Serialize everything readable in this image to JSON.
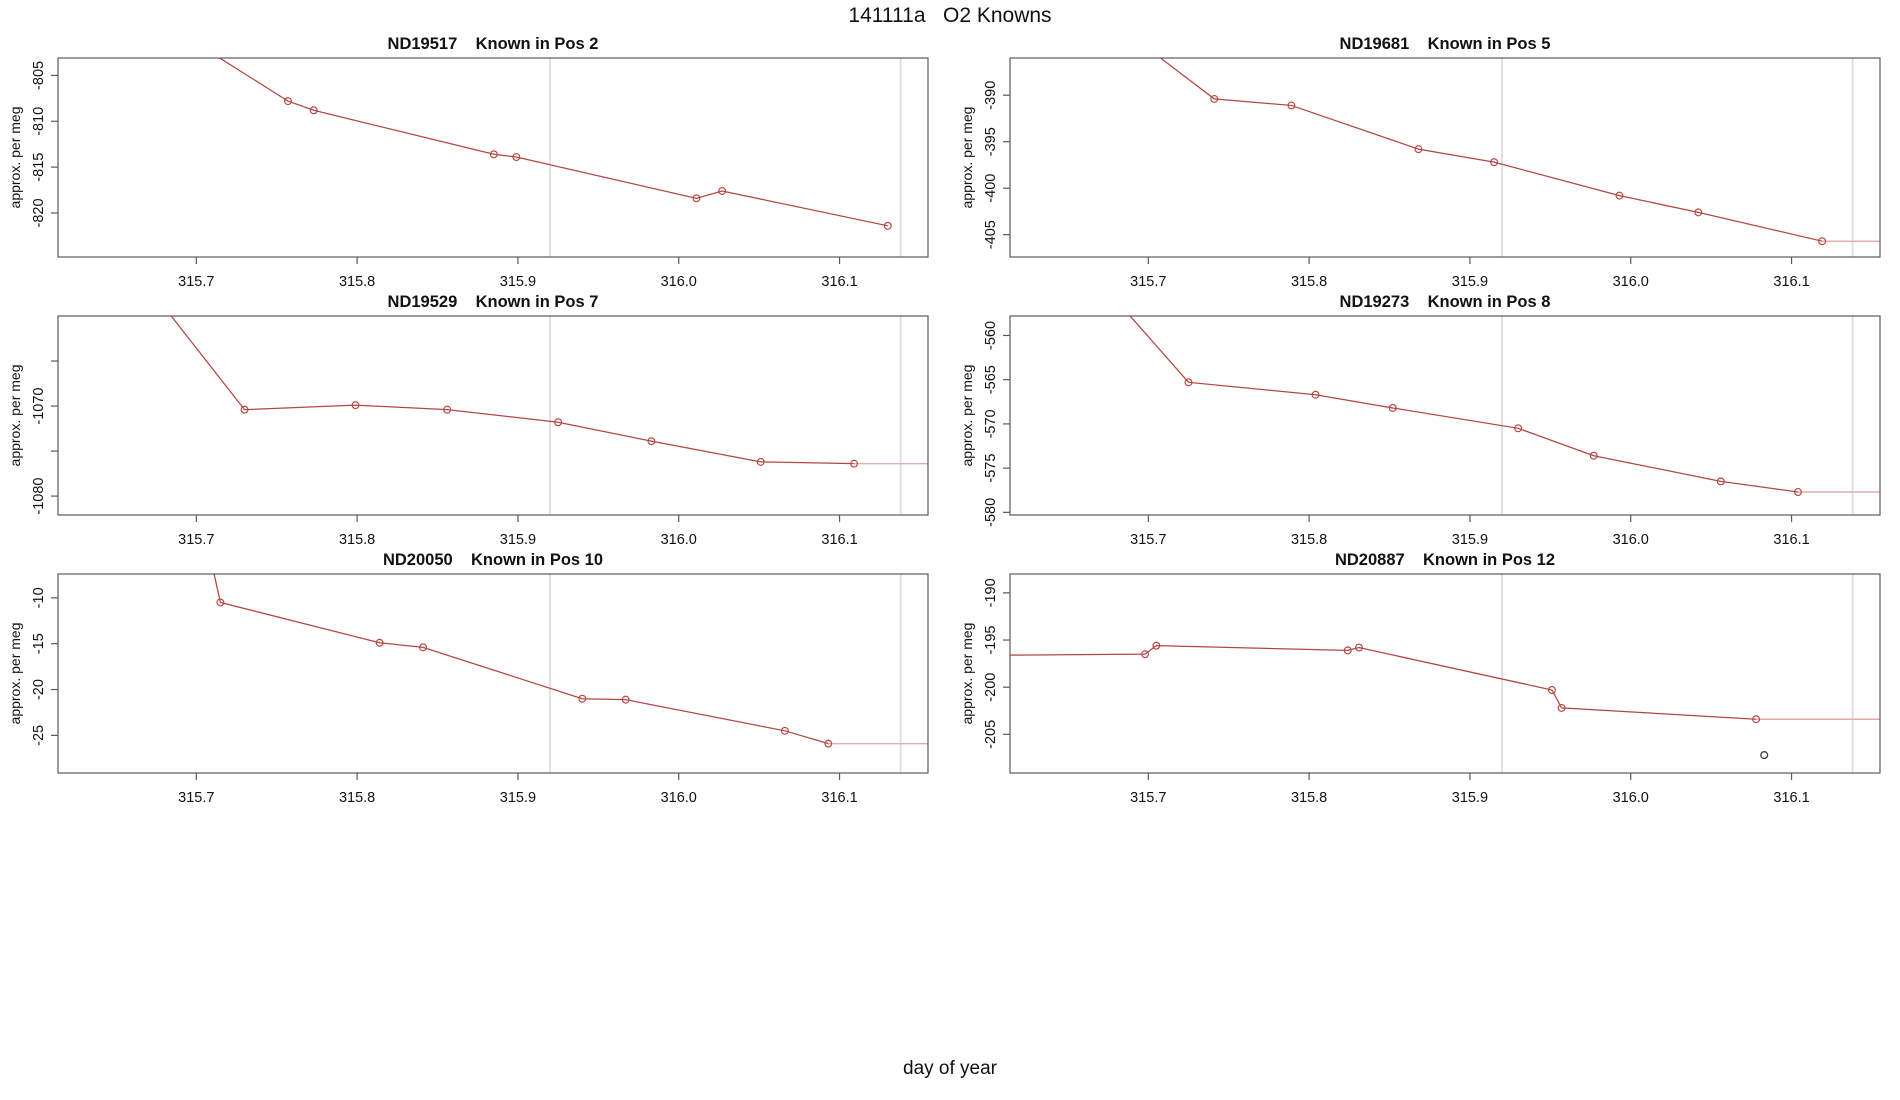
{
  "title": "141111a   O2 Knowns",
  "footer_xlabel": "day of year",
  "y_axis_label": "approx. per meg",
  "axis": {
    "xlim": [
      315.614,
      316.155
    ],
    "xtick_values": [
      315.7,
      315.8,
      315.9,
      316.0,
      316.1
    ],
    "xtick_labels": [
      "315.7",
      "315.8",
      "315.9",
      "316.0",
      "316.1"
    ],
    "guide_lines_x": [
      315.92,
      316.138
    ]
  },
  "colors": {
    "series": "#b44641",
    "series_tail": "#e2aba8",
    "guide": "#dcdcdc",
    "frame": "#5a5a5a",
    "text": "#111111",
    "outlier": "#443733"
  },
  "chart_data": [
    {
      "type": "line",
      "sample_id": "ND19517",
      "position_label": "Known in Pos 2",
      "title": "ND19517    Known in Pos 2",
      "ylim": [
        -824.8,
        -803.1
      ],
      "yticks": [
        -805,
        -810,
        -815,
        -820
      ],
      "ytick_labels": [
        "-805",
        "-810",
        "-815",
        "-820"
      ],
      "entry_point": [
        315.71,
        -802.6
      ],
      "lead_in": null,
      "points": [
        [
          315.757,
          -807.8
        ],
        [
          315.773,
          -808.8
        ],
        [
          315.885,
          -813.6
        ],
        [
          315.899,
          -813.9
        ],
        [
          316.011,
          -818.4
        ],
        [
          316.027,
          -817.6
        ],
        [
          316.13,
          -821.4
        ]
      ],
      "tail_to_x": null,
      "outlier_point": null
    },
    {
      "type": "line",
      "sample_id": "ND19681",
      "position_label": "Known in Pos 5",
      "title": "ND19681    Known in Pos 5",
      "ylim": [
        -407.4,
        -386.0
      ],
      "yticks": [
        -390,
        -395,
        -400,
        -405
      ],
      "ytick_labels": [
        "-390",
        "-395",
        "-400",
        "-405"
      ],
      "entry_point": [
        315.7,
        -385.0
      ],
      "lead_in": null,
      "points": [
        [
          315.741,
          -390.4
        ],
        [
          315.789,
          -391.1
        ],
        [
          315.868,
          -395.8
        ],
        [
          315.915,
          -397.2
        ],
        [
          315.993,
          -400.8
        ],
        [
          316.042,
          -402.6
        ],
        [
          316.119,
          -405.7
        ]
      ],
      "tail_to_x": 316.155,
      "outlier_point": null
    },
    {
      "type": "line",
      "sample_id": "ND19529",
      "position_label": "Known in Pos 7",
      "title": "ND19529    Known in Pos 7",
      "ylim": [
        -1082.1,
        -1060.0
      ],
      "yticks": [
        -1065,
        -1070,
        -1075,
        -1080
      ],
      "ytick_labels": [
        "",
        "-1070",
        "",
        "-1080"
      ],
      "entry_point": [
        315.68,
        -1059.0
      ],
      "lead_in": null,
      "points": [
        [
          315.73,
          -1070.4
        ],
        [
          315.799,
          -1069.9
        ],
        [
          315.856,
          -1070.4
        ],
        [
          315.925,
          -1071.8
        ],
        [
          315.983,
          -1073.9
        ],
        [
          316.051,
          -1076.2
        ],
        [
          316.109,
          -1076.4
        ]
      ],
      "tail_to_x": 316.155,
      "outlier_point": null
    },
    {
      "type": "line",
      "sample_id": "ND19273",
      "position_label": "Known in Pos 8",
      "title": "ND19273    Known in Pos 8",
      "ylim": [
        -580.3,
        -557.8
      ],
      "yticks": [
        -560,
        -565,
        -570,
        -575,
        -580
      ],
      "ytick_labels": [
        "-560",
        "-565",
        "-570",
        "-575",
        "-580"
      ],
      "entry_point": [
        315.68,
        -556.0
      ],
      "lead_in": null,
      "points": [
        [
          315.725,
          -565.3
        ],
        [
          315.804,
          -566.7
        ],
        [
          315.852,
          -568.2
        ],
        [
          315.93,
          -570.5
        ],
        [
          315.977,
          -573.6
        ],
        [
          316.056,
          -576.5
        ],
        [
          316.104,
          -577.7
        ]
      ],
      "tail_to_x": 316.155,
      "outlier_point": null
    },
    {
      "type": "line",
      "sample_id": "ND20050",
      "position_label": "Known in Pos 10",
      "title": "ND20050    Known in Pos 10",
      "ylim": [
        -29.1,
        -7.4
      ],
      "yticks": [
        -10,
        -15,
        -20,
        -25
      ],
      "ytick_labels": [
        "-10",
        "-15",
        "-20",
        "-25"
      ],
      "entry_point": [
        315.708,
        -5.0
      ],
      "lead_in": null,
      "points": [
        [
          315.715,
          -10.5
        ],
        [
          315.814,
          -14.9
        ],
        [
          315.841,
          -15.4
        ],
        [
          315.94,
          -21.0
        ],
        [
          315.967,
          -21.1
        ],
        [
          316.066,
          -24.5
        ],
        [
          316.093,
          -25.9
        ]
      ],
      "tail_to_x": 316.155,
      "outlier_point": null
    },
    {
      "type": "line",
      "sample_id": "ND20887",
      "position_label": "Known in Pos 12",
      "title": "ND20887    Known in Pos 12",
      "ylim": [
        -209.1,
        -188.0
      ],
      "yticks": [
        -190,
        -195,
        -200,
        -205
      ],
      "ytick_labels": [
        "-190",
        "-195",
        "-200",
        "-205"
      ],
      "entry_point": null,
      "lead_in": [
        [
          315.614,
          -196.6
        ]
      ],
      "points": [
        [
          315.698,
          -196.5
        ],
        [
          315.705,
          -195.6
        ],
        [
          315.824,
          -196.1
        ],
        [
          315.831,
          -195.8
        ],
        [
          315.951,
          -200.3
        ],
        [
          315.957,
          -202.2
        ],
        [
          316.078,
          -203.4
        ]
      ],
      "tail_to_x": 316.155,
      "outlier_point": [
        316.083,
        -207.2
      ]
    }
  ]
}
